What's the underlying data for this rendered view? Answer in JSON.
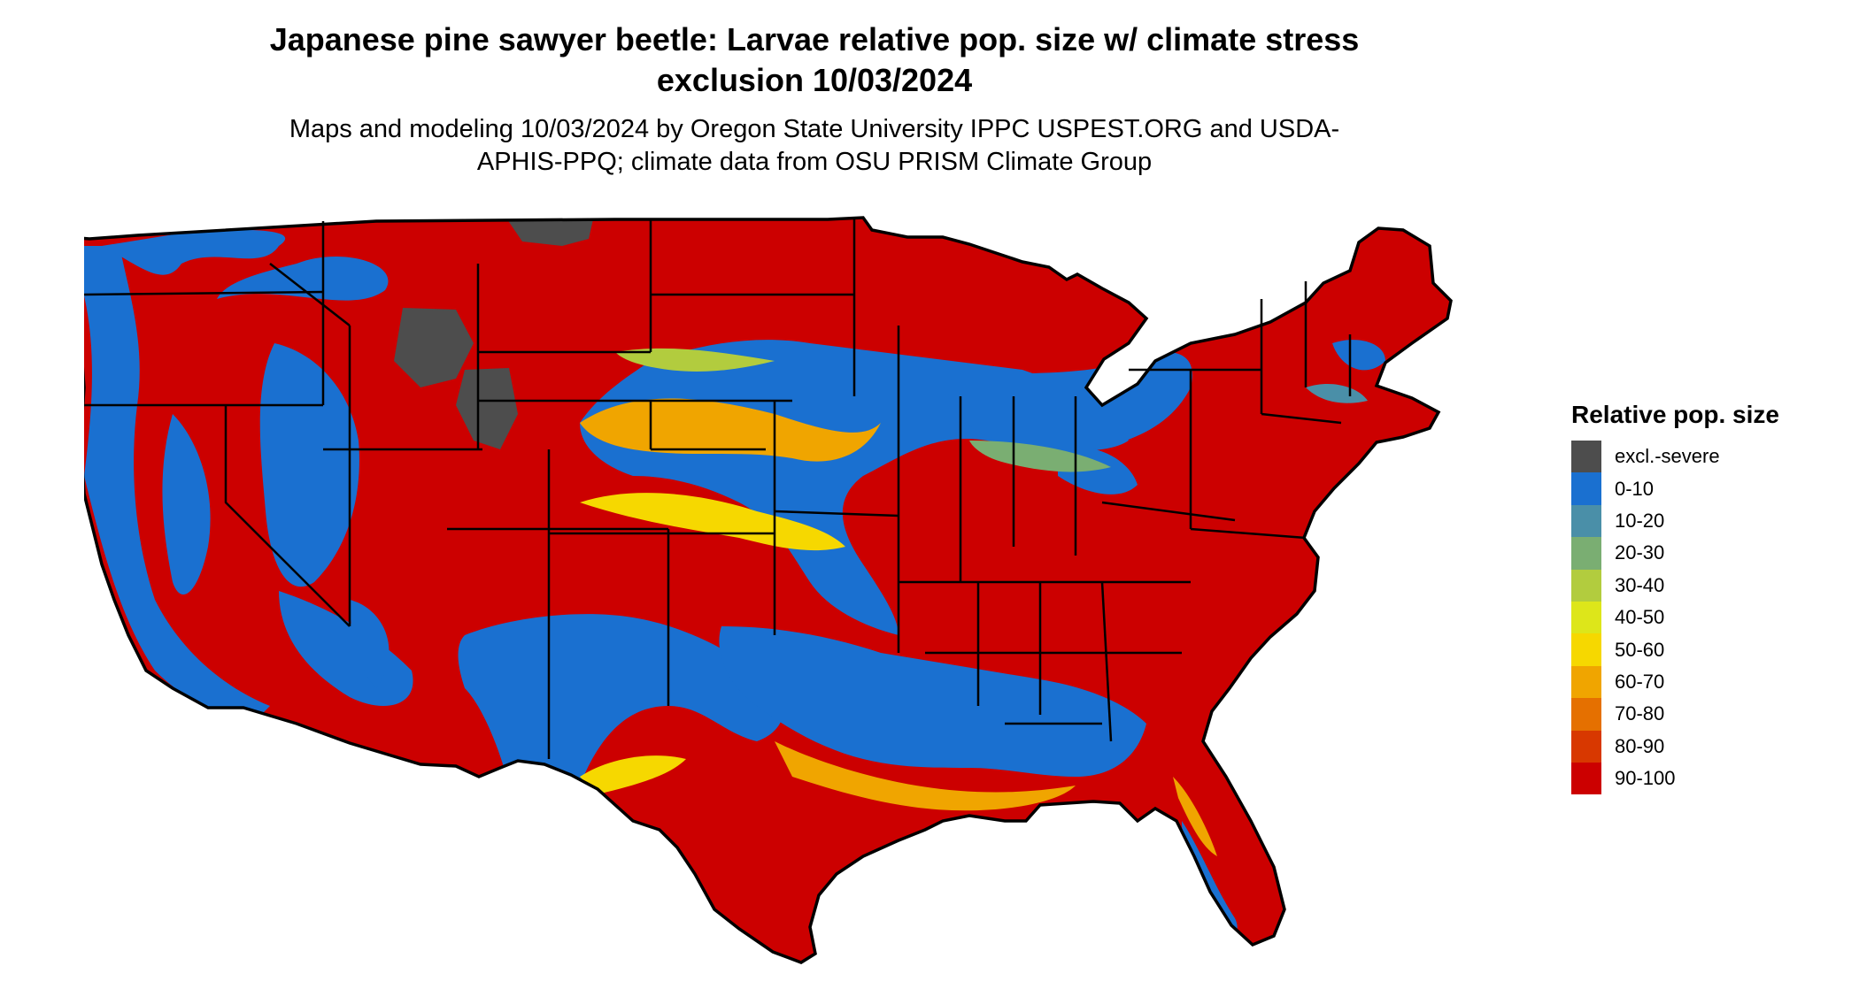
{
  "title": "Japanese pine sawyer beetle: Larvae relative pop. size w/ climate stress exclusion 10/03/2024",
  "subtitle": "Maps and modeling 10/03/2024 by Oregon State University IPPC USPEST.ORG and USDA-APHIS-PPQ; climate data from OSU PRISM Climate Group",
  "legend": {
    "title": "Relative pop. size",
    "items": [
      {
        "label": "excl.-severe",
        "color": "#4d4d4d"
      },
      {
        "label": "0-10",
        "color": "#1a70d0"
      },
      {
        "label": "10-20",
        "color": "#4a8fa8"
      },
      {
        "label": "20-30",
        "color": "#7aae72"
      },
      {
        "label": "30-40",
        "color": "#b2cc3e"
      },
      {
        "label": "40-50",
        "color": "#dde61a"
      },
      {
        "label": "50-60",
        "color": "#f6d800"
      },
      {
        "label": "60-70",
        "color": "#f0a500"
      },
      {
        "label": "70-80",
        "color": "#e57000"
      },
      {
        "label": "80-90",
        "color": "#d83800"
      },
      {
        "label": "90-100",
        "color": "#cc0000"
      }
    ]
  },
  "map_colors": {
    "background": "#ffffff",
    "boundary": "#000000",
    "excl": "#4d4d4d",
    "low": "#1a70d0",
    "mid_teal": "#4a8fa8",
    "mid_green": "#7aae72",
    "mid_lime": "#b2cc3e",
    "mid_yellow": "#f6d800",
    "mid_orange": "#f0a500",
    "high": "#cc0000"
  }
}
